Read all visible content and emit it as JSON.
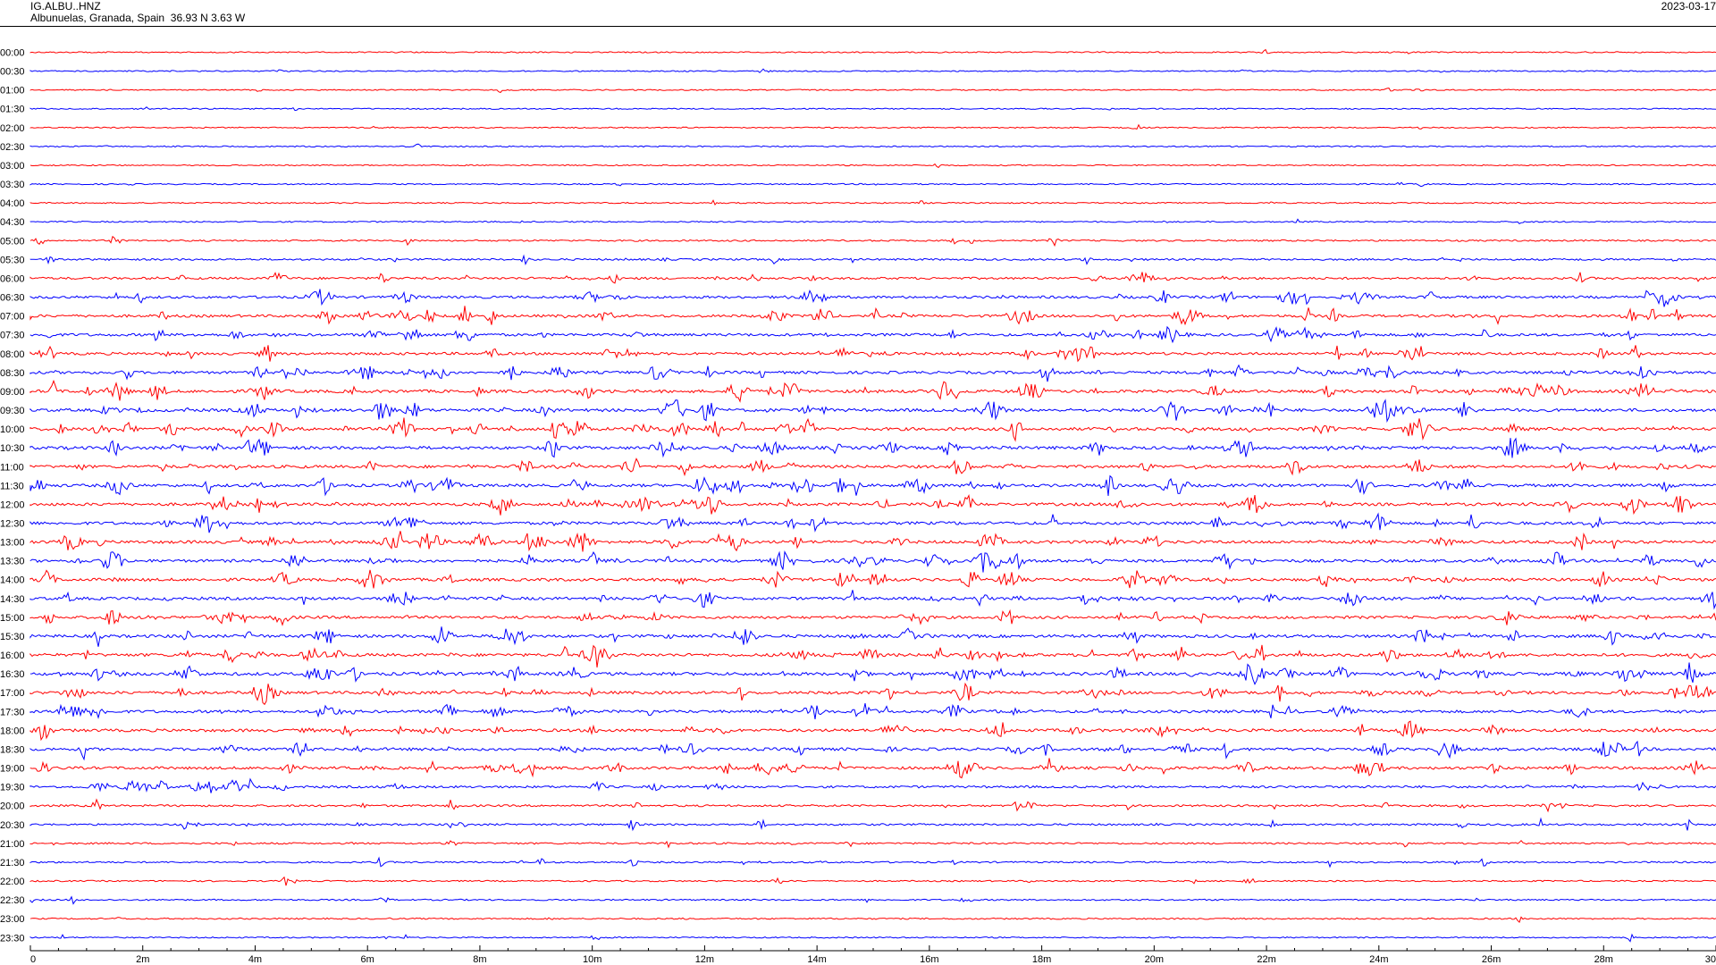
{
  "header": {
    "station": "IG.ALBU..HNZ",
    "location": "Albunuelas, Granada, Spain  36.93 N 3.63 W",
    "date": "2023-03-17"
  },
  "chart_data": {
    "type": "line",
    "title": "",
    "xlabel": "",
    "ylabel": "",
    "rows": [
      "00:00",
      "00:30",
      "01:00",
      "01:30",
      "02:00",
      "02:30",
      "03:00",
      "03:30",
      "04:00",
      "04:30",
      "05:00",
      "05:30",
      "06:00",
      "06:30",
      "07:00",
      "07:30",
      "08:00",
      "08:30",
      "09:00",
      "09:30",
      "10:00",
      "10:30",
      "11:00",
      "11:30",
      "12:00",
      "12:30",
      "13:00",
      "13:30",
      "14:00",
      "14:30",
      "15:00",
      "15:30",
      "16:00",
      "16:30",
      "17:00",
      "17:30",
      "18:00",
      "18:30",
      "19:00",
      "19:30",
      "20:00",
      "20:30",
      "21:00",
      "21:30",
      "22:00",
      "22:30",
      "23:00",
      "23:30"
    ],
    "xlim": [
      0,
      30
    ],
    "x_ticks": [
      "0",
      "2m",
      "4m",
      "6m",
      "8m",
      "10m",
      "12m",
      "14m",
      "16m",
      "18m",
      "20m",
      "22m",
      "24m",
      "26m",
      "28m",
      "30"
    ],
    "row_colors": [
      "#ff0000",
      "#0000ff"
    ],
    "activity_by_row": [
      0.05,
      0.04,
      0.04,
      0.05,
      0.04,
      0.05,
      0.04,
      0.06,
      0.06,
      0.08,
      0.2,
      0.3,
      0.45,
      0.55,
      0.6,
      0.6,
      0.6,
      0.65,
      0.75,
      0.75,
      0.8,
      0.75,
      0.7,
      0.7,
      0.7,
      0.7,
      0.75,
      0.7,
      0.7,
      0.7,
      0.65,
      0.7,
      0.75,
      0.8,
      0.7,
      0.65,
      0.7,
      0.7,
      0.65,
      0.45,
      0.35,
      0.3,
      0.25,
      0.2,
      0.12,
      0.15,
      0.12,
      0.08
    ]
  }
}
